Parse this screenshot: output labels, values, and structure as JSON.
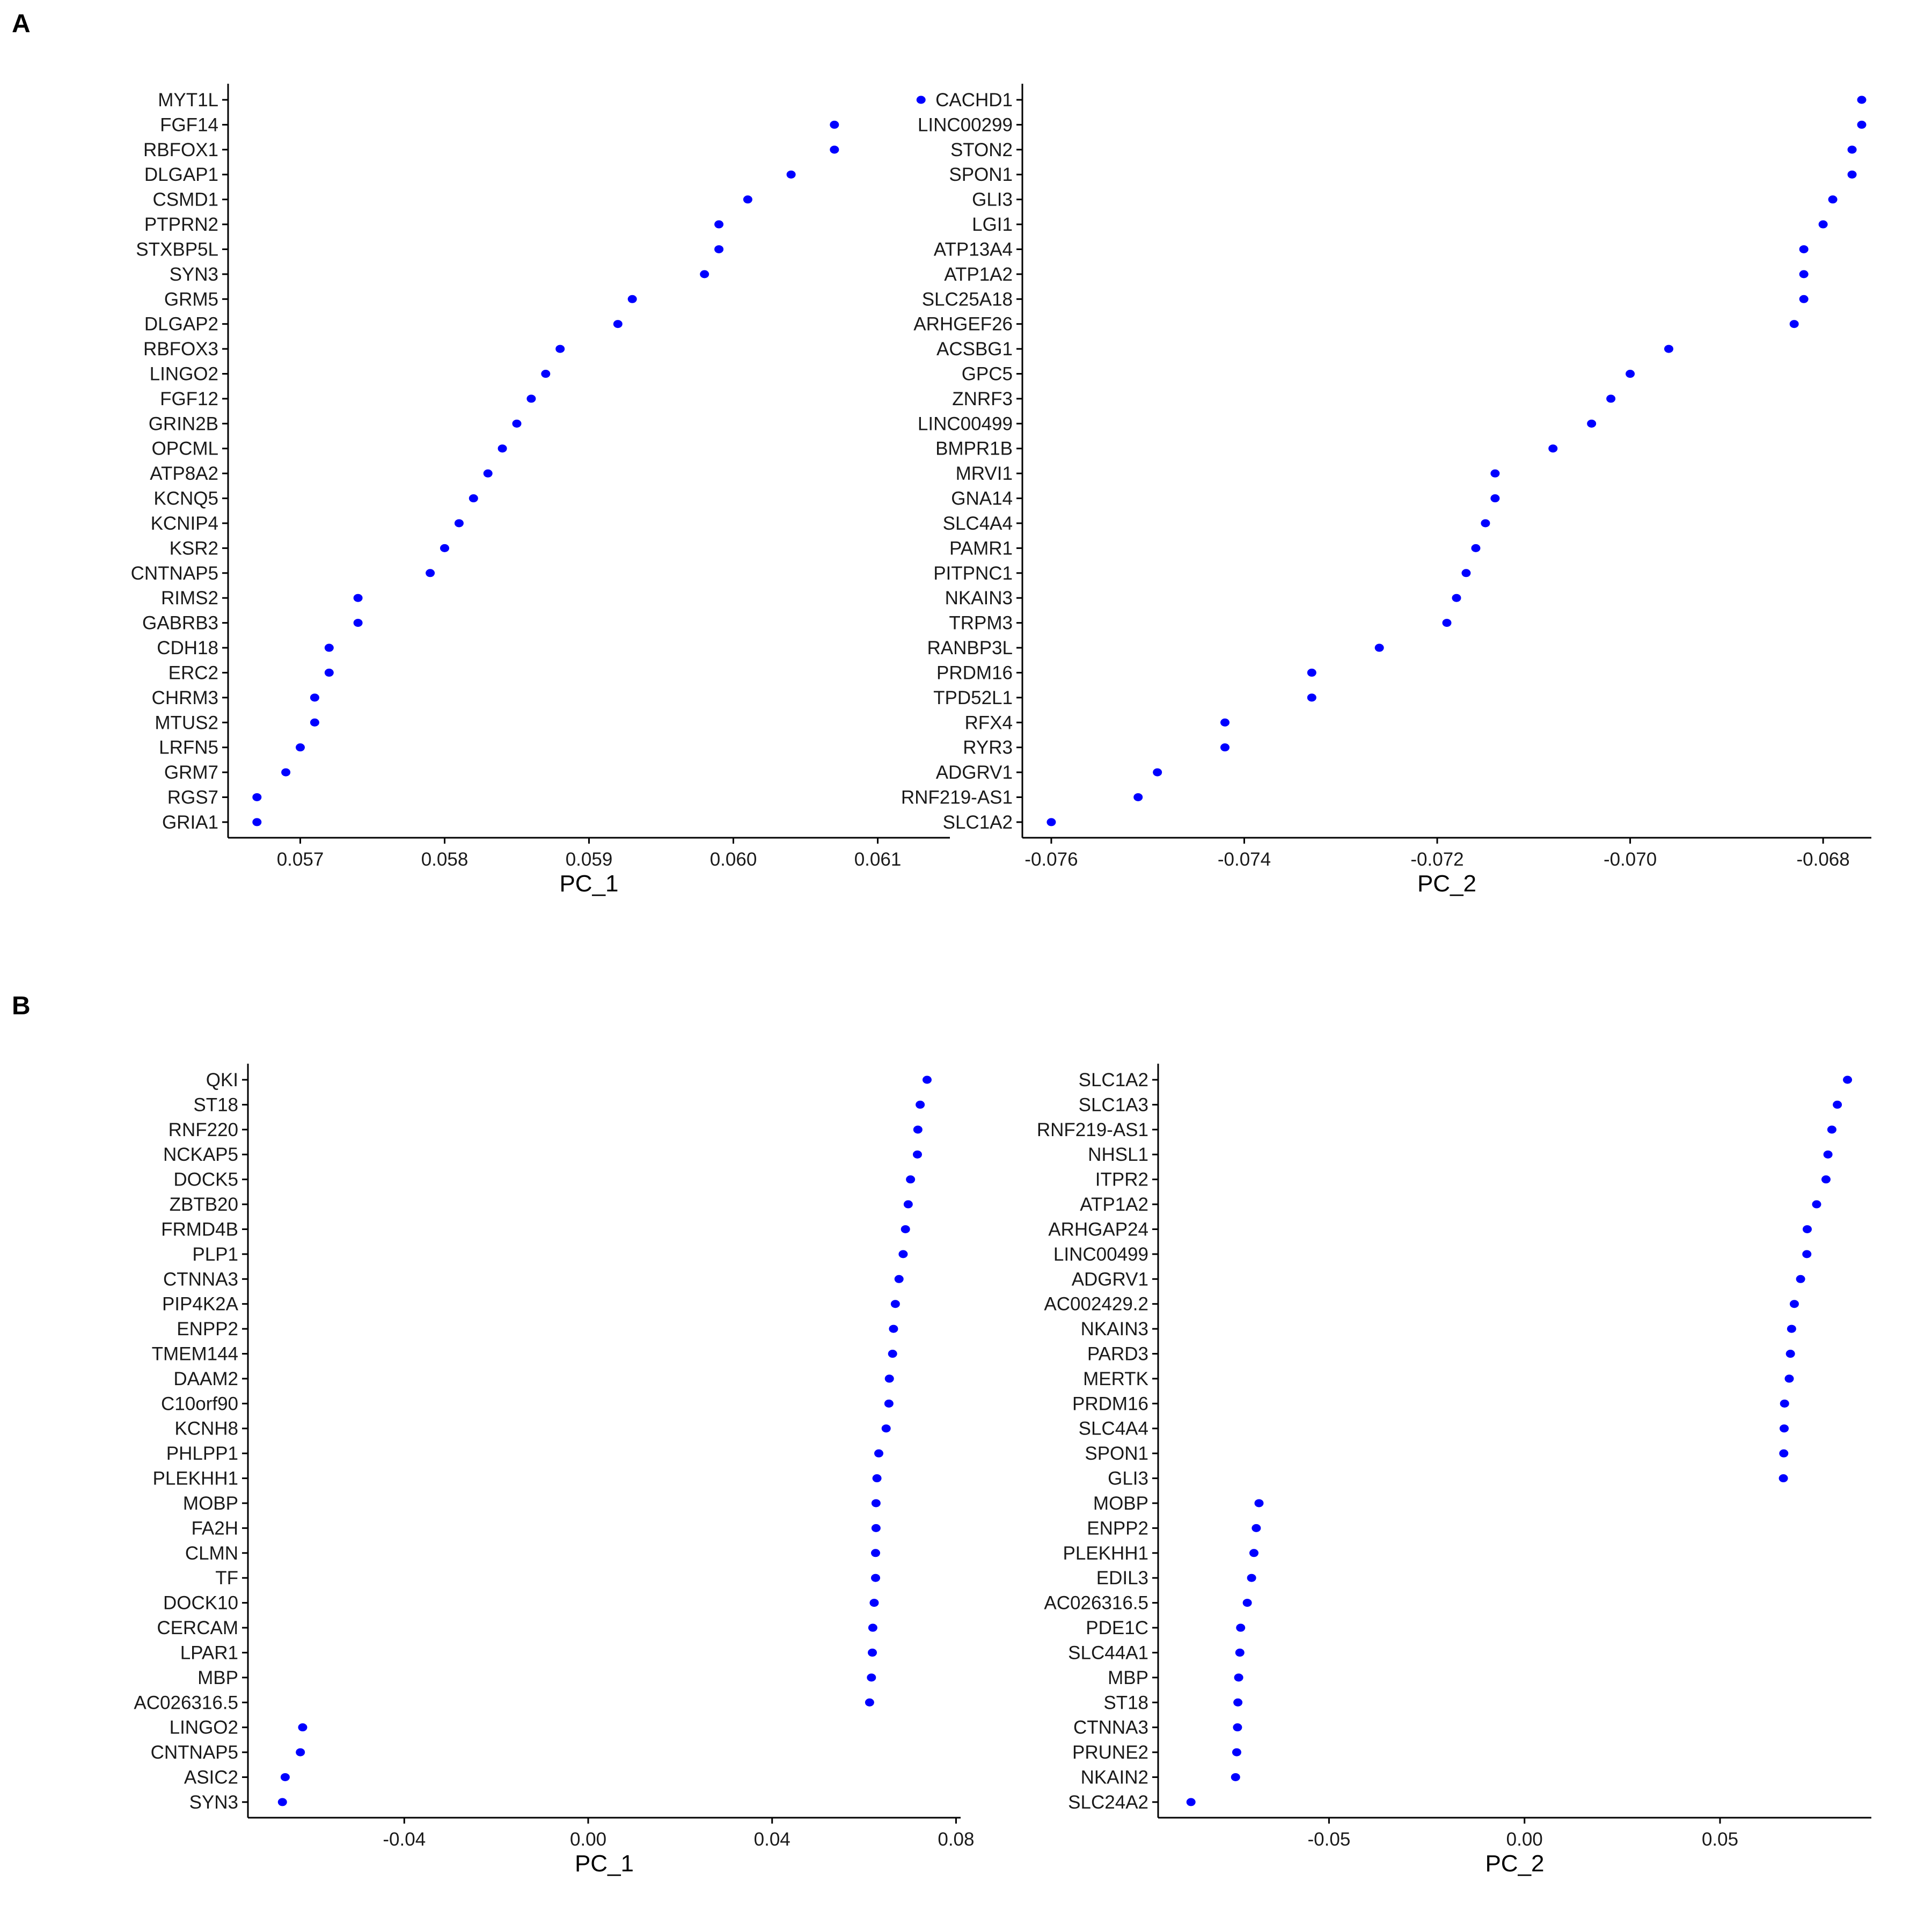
{
  "panel_labels": [
    "A",
    "B"
  ],
  "colors": {
    "point": "#0000ff",
    "axis": "#000000",
    "text": "#1a1a1a"
  },
  "chart_data": [
    {
      "panel": "A",
      "type": "scatter",
      "xlabel": "PC_1",
      "ylabel": "",
      "xlim": [
        0.0565,
        0.0615
      ],
      "xticks": [
        {
          "value": 0.057,
          "label": "0.057"
        },
        {
          "value": 0.058,
          "label": "0.058"
        },
        {
          "value": 0.059,
          "label": "0.059"
        },
        {
          "value": 0.06,
          "label": "0.060"
        },
        {
          "value": 0.061,
          "label": "0.061"
        }
      ],
      "grid": false,
      "genes": [
        "MYT1L",
        "FGF14",
        "RBFOX1",
        "DLGAP1",
        "CSMD1",
        "PTPRN2",
        "STXBP5L",
        "SYN3",
        "GRM5",
        "DLGAP2",
        "RBFOX3",
        "LINGO2",
        "FGF12",
        "GRIN2B",
        "OPCML",
        "ATP8A2",
        "KCNQ5",
        "KCNIP4",
        "KSR2",
        "CNTNAP5",
        "RIMS2",
        "GABRB3",
        "CDH18",
        "ERC2",
        "CHRM3",
        "MTUS2",
        "LRFN5",
        "GRM7",
        "RGS7",
        "GRIA1"
      ],
      "values": [
        0.0613,
        0.0607,
        0.0607,
        0.0604,
        0.0601,
        0.0599,
        0.0599,
        0.0598,
        0.0593,
        0.0592,
        0.0588,
        0.0587,
        0.0586,
        0.0585,
        0.0584,
        0.0583,
        0.0582,
        0.0581,
        0.058,
        0.0579,
        0.0574,
        0.0574,
        0.0572,
        0.0572,
        0.0571,
        0.0571,
        0.057,
        0.0569,
        0.0567,
        0.0567
      ]
    },
    {
      "panel": "A",
      "type": "scatter",
      "xlabel": "PC_2",
      "ylabel": "",
      "xlim": [
        -0.0763,
        -0.0675
      ],
      "xticks": [
        {
          "value": -0.076,
          "label": "-0.076"
        },
        {
          "value": -0.074,
          "label": "-0.074"
        },
        {
          "value": -0.072,
          "label": "-0.072"
        },
        {
          "value": -0.07,
          "label": "-0.070"
        },
        {
          "value": -0.068,
          "label": "-0.068"
        }
      ],
      "grid": false,
      "genes": [
        "CACHD1",
        "LINC00299",
        "STON2",
        "SPON1",
        "GLI3",
        "LGI1",
        "ATP13A4",
        "ATP1A2",
        "SLC25A18",
        "ARHGEF26",
        "ACSBG1",
        "GPC5",
        "ZNRF3",
        "LINC00499",
        "BMPR1B",
        "MRVI1",
        "GNA14",
        "SLC4A4",
        "PAMR1",
        "PITPNC1",
        "NKAIN3",
        "TRPM3",
        "RANBP3L",
        "PRDM16",
        "TPD52L1",
        "RFX4",
        "RYR3",
        "ADGRV1",
        "RNF219-AS1",
        "SLC1A2"
      ],
      "values": [
        -0.0676,
        -0.0676,
        -0.0677,
        -0.0677,
        -0.0679,
        -0.068,
        -0.0682,
        -0.0682,
        -0.0682,
        -0.0683,
        -0.0696,
        -0.07,
        -0.0702,
        -0.0704,
        -0.0708,
        -0.0714,
        -0.0714,
        -0.0715,
        -0.0716,
        -0.0717,
        -0.0718,
        -0.0719,
        -0.0726,
        -0.0733,
        -0.0733,
        -0.0742,
        -0.0742,
        -0.0749,
        -0.0751,
        -0.076
      ]
    },
    {
      "panel": "B",
      "type": "scatter",
      "xlabel": "PC_1",
      "ylabel": "",
      "xlim": [
        -0.074,
        0.081
      ],
      "xticks": [
        {
          "value": -0.04,
          "label": "-0.04"
        },
        {
          "value": 0.0,
          "label": "0.00"
        },
        {
          "value": 0.04,
          "label": "0.04"
        },
        {
          "value": 0.08,
          "label": "0.08"
        }
      ],
      "grid": false,
      "genes": [
        "QKI",
        "ST18",
        "RNF220",
        "NCKAP5",
        "DOCK5",
        "ZBTB20",
        "FRMD4B",
        "PLP1",
        "CTNNA3",
        "PIP4K2A",
        "ENPP2",
        "TMEM144",
        "DAAM2",
        "C10orf90",
        "KCNH8",
        "PHLPP1",
        "PLEKHH1",
        "MOBP",
        "FA2H",
        "CLMN",
        "TF",
        "DOCK10",
        "CERCAM",
        "LPAR1",
        "MBP",
        "AC026316.5",
        "LINGO2",
        "CNTNAP5",
        "ASIC2",
        "SYN3"
      ],
      "values": [
        0.0737,
        0.0722,
        0.0717,
        0.0716,
        0.0701,
        0.0696,
        0.069,
        0.0685,
        0.0676,
        0.0668,
        0.0664,
        0.0662,
        0.0655,
        0.0654,
        0.0648,
        0.0632,
        0.0628,
        0.0626,
        0.0626,
        0.0625,
        0.0625,
        0.0622,
        0.0619,
        0.0618,
        0.0616,
        0.0612,
        -0.0621,
        -0.0626,
        -0.0659,
        -0.0665
      ]
    },
    {
      "panel": "B",
      "type": "scatter",
      "xlabel": "PC_2",
      "ylabel": "",
      "xlim": [
        -0.0937,
        0.0887
      ],
      "xticks": [
        {
          "value": -0.05,
          "label": "-0.05"
        },
        {
          "value": 0.0,
          "label": "0.00"
        },
        {
          "value": 0.05,
          "label": "0.05"
        }
      ],
      "grid": false,
      "genes": [
        "SLC1A2",
        "SLC1A3",
        "RNF219-AS1",
        "NHSL1",
        "ITPR2",
        "ATP1A2",
        "ARHGAP24",
        "LINC00499",
        "ADGRV1",
        "AC002429.2",
        "NKAIN3",
        "PARD3",
        "MERTK",
        "PRDM16",
        "SLC4A4",
        "SPON1",
        "GLI3",
        "MOBP",
        "ENPP2",
        "PLEKHH1",
        "EDIL3",
        "AC026316.5",
        "PDE1C",
        "SLC44A1",
        "MBP",
        "ST18",
        "CTNNA3",
        "PRUNE2",
        "NKAIN2",
        "SLC24A2"
      ],
      "values": [
        0.0826,
        0.08,
        0.0786,
        0.0776,
        0.0771,
        0.0747,
        0.0723,
        0.0722,
        0.0706,
        0.069,
        0.0683,
        0.068,
        0.0677,
        0.0665,
        0.0664,
        0.0663,
        0.0662,
        -0.0679,
        -0.0686,
        -0.0692,
        -0.0698,
        -0.0709,
        -0.0726,
        -0.0728,
        -0.0731,
        -0.0733,
        -0.0734,
        -0.0736,
        -0.0739,
        -0.0853
      ]
    }
  ]
}
